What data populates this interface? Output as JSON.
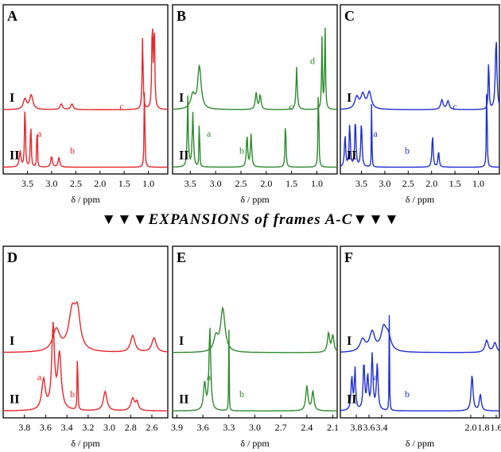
{
  "banner": "▼▼▼EXPANSIONS of frames A-C▼▼▼",
  "xlabel": "δ / ppm",
  "chart_data": [
    {
      "type": "line",
      "panel": "A",
      "color": "#e8262b",
      "xlim": [
        4.0,
        0.6
      ],
      "ticks": [
        "3.5",
        "3.0",
        "2.5",
        "2.0",
        "1.5",
        "1.0"
      ],
      "tick_values": [
        3.5,
        3.0,
        2.5,
        2.0,
        1.5,
        1.0
      ],
      "traces": [
        {
          "name": "I",
          "peaks": [
            [
              3.55,
              0.22,
              0.04
            ],
            [
              3.42,
              0.3,
              0.04
            ],
            [
              2.8,
              0.12,
              0.03
            ],
            [
              2.58,
              0.12,
              0.03
            ],
            [
              1.12,
              1.6,
              0.012
            ],
            [
              0.92,
              1.9,
              0.012
            ],
            [
              0.88,
              1.8,
              0.012
            ]
          ]
        },
        {
          "name": "II",
          "peaks": [
            [
              3.65,
              0.3,
              0.02
            ],
            [
              3.55,
              1.3,
              0.01
            ],
            [
              3.43,
              0.9,
              0.01
            ],
            [
              3.3,
              1.5,
              0.005
            ],
            [
              3.0,
              0.2,
              0.02
            ],
            [
              2.85,
              0.18,
              0.02
            ],
            [
              1.08,
              1.7,
              0.008
            ]
          ]
        }
      ],
      "labels": [
        "a",
        "b",
        "c"
      ]
    },
    {
      "type": "line",
      "panel": "B",
      "color": "#2e8b2e",
      "xlim": [
        3.85,
        0.6
      ],
      "ticks": [
        "3.5",
        "3.0",
        "2.5",
        "2.0",
        "1.5",
        "1.0"
      ],
      "tick_values": [
        3.5,
        3.0,
        2.5,
        2.0,
        1.5,
        1.0
      ],
      "traces": [
        {
          "name": "I",
          "peaks": [
            [
              3.45,
              0.3,
              0.05
            ],
            [
              3.32,
              0.9,
              0.04
            ],
            [
              2.2,
              0.35,
              0.02
            ],
            [
              2.12,
              0.3,
              0.02
            ],
            [
              1.4,
              0.9,
              0.015
            ],
            [
              0.9,
              1.5,
              0.01
            ],
            [
              0.84,
              1.8,
              0.01
            ]
          ]
        },
        {
          "name": "II",
          "peaks": [
            [
              3.55,
              1.3,
              0.012
            ],
            [
              3.45,
              1.0,
              0.015
            ],
            [
              3.32,
              1.5,
              0.005
            ],
            [
              2.38,
              0.6,
              0.015
            ],
            [
              2.3,
              0.6,
              0.015
            ],
            [
              1.62,
              0.9,
              0.01
            ],
            [
              0.97,
              1.8,
              0.008
            ]
          ]
        }
      ],
      "labels": [
        "a",
        "b",
        "c",
        "d"
      ]
    },
    {
      "type": "line",
      "panel": "C",
      "color": "#1f2fd6",
      "xlim": [
        3.95,
        0.55
      ],
      "ticks": [
        "3.5",
        "3.0",
        "2.5",
        "2.0",
        "1.5",
        "1.0"
      ],
      "tick_values": [
        3.5,
        3.0,
        2.5,
        2.0,
        1.5,
        1.0
      ],
      "traces": [
        {
          "name": "I",
          "peaks": [
            [
              3.6,
              0.25,
              0.05
            ],
            [
              3.47,
              0.3,
              0.05
            ],
            [
              3.33,
              0.35,
              0.05
            ],
            [
              1.78,
              0.2,
              0.03
            ],
            [
              1.65,
              0.18,
              0.03
            ],
            [
              0.78,
              1.2,
              0.01
            ],
            [
              0.62,
              1.5,
              0.02
            ]
          ]
        },
        {
          "name": "II",
          "peaks": [
            [
              3.85,
              0.6,
              0.015
            ],
            [
              3.75,
              0.8,
              0.015
            ],
            [
              3.63,
              0.9,
              0.015
            ],
            [
              3.5,
              0.85,
              0.015
            ],
            [
              3.28,
              1.6,
              0.005
            ],
            [
              1.98,
              0.6,
              0.015
            ],
            [
              1.85,
              0.3,
              0.015
            ],
            [
              0.82,
              1.8,
              0.008
            ]
          ]
        }
      ],
      "labels": [
        "a",
        "b",
        "c"
      ]
    },
    {
      "type": "line",
      "panel": "D",
      "color": "#e8262b",
      "xlim": [
        4.0,
        2.45
      ],
      "ticks": [
        "3.8",
        "3.6",
        "3.4",
        "3.2",
        "3.0",
        "2.8",
        "2.6"
      ],
      "tick_values": [
        3.8,
        3.6,
        3.4,
        3.2,
        3.0,
        2.8,
        2.6
      ],
      "traces": [
        {
          "name": "I",
          "peaks": [
            [
              3.5,
              0.45,
              0.04
            ],
            [
              3.35,
              0.8,
              0.04
            ],
            [
              3.3,
              0.7,
              0.03
            ],
            [
              2.78,
              0.35,
              0.025
            ],
            [
              2.58,
              0.3,
              0.025
            ]
          ]
        },
        {
          "name": "II",
          "peaks": [
            [
              3.62,
              0.55,
              0.02
            ],
            [
              3.53,
              1.5,
              0.015
            ],
            [
              3.47,
              1.0,
              0.02
            ],
            [
              3.3,
              1.5,
              0.003
            ],
            [
              3.04,
              0.35,
              0.02
            ],
            [
              2.78,
              0.22,
              0.02
            ],
            [
              2.74,
              0.15,
              0.015
            ]
          ]
        }
      ],
      "labels": [
        "a",
        "b"
      ]
    },
    {
      "type": "line",
      "panel": "E",
      "color": "#2e8b2e",
      "xlim": [
        3.95,
        2.05
      ],
      "ticks": [
        "3.9",
        "3.6",
        "3.3",
        "3.0",
        "2.7",
        "2.4",
        "2.1"
      ],
      "tick_values": [
        3.9,
        3.6,
        3.3,
        3.0,
        2.7,
        2.4,
        2.1
      ],
      "traces": [
        {
          "name": "I",
          "peaks": [
            [
              3.45,
              0.3,
              0.03
            ],
            [
              3.37,
              0.9,
              0.03
            ],
            [
              2.15,
              0.4,
              0.015
            ],
            [
              2.1,
              0.35,
              0.015
            ]
          ]
        },
        {
          "name": "II",
          "peaks": [
            [
              3.58,
              0.5,
              0.015
            ],
            [
              3.52,
              1.5,
              0.012
            ],
            [
              3.3,
              1.5,
              0.003
            ],
            [
              2.4,
              0.45,
              0.015
            ],
            [
              2.33,
              0.35,
              0.015
            ]
          ]
        }
      ],
      "labels": [
        "a",
        "b"
      ]
    },
    {
      "type": "line",
      "panel": "F",
      "color": "#1f2fd6",
      "xlim": [
        4.05,
        1.55
      ],
      "ticks": [
        "3.8",
        "3.6",
        "3.4",
        "2.0",
        "1.8",
        "1.6"
      ],
      "tick_values": [
        3.8,
        3.6,
        3.4,
        2.0,
        1.8,
        1.6
      ],
      "traces": [
        {
          "name": "I",
          "peaks": [
            [
              3.7,
              0.25,
              0.05
            ],
            [
              3.55,
              0.4,
              0.05
            ],
            [
              3.37,
              0.45,
              0.05
            ],
            [
              3.3,
              0.3,
              0.05
            ],
            [
              1.75,
              0.25,
              0.03
            ],
            [
              1.62,
              0.2,
              0.03
            ]
          ]
        },
        {
          "name": "II",
          "peaks": [
            [
              3.87,
              0.6,
              0.015
            ],
            [
              3.82,
              0.75,
              0.012
            ],
            [
              3.68,
              0.85,
              0.015
            ],
            [
              3.62,
              0.6,
              0.015
            ],
            [
              3.55,
              1.0,
              0.015
            ],
            [
              3.47,
              0.85,
              0.015
            ],
            [
              3.28,
              1.8,
              0.004
            ],
            [
              1.98,
              0.65,
              0.018
            ],
            [
              1.85,
              0.3,
              0.018
            ]
          ]
        }
      ],
      "labels": [
        "a",
        "b"
      ]
    }
  ]
}
